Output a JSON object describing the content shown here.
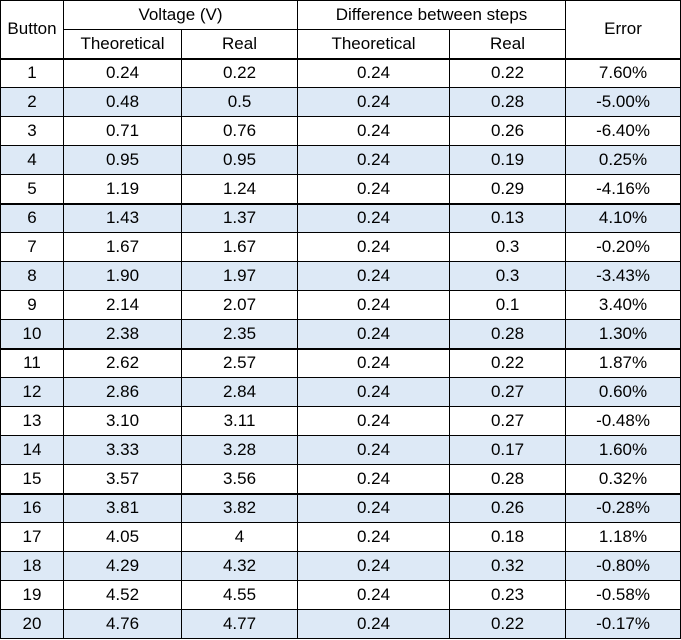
{
  "headers": {
    "button": "Button",
    "voltage_group": "Voltage (V)",
    "difference_group": "Difference between steps",
    "error": "Error",
    "voltage_theoretical": "Theoretical",
    "voltage_real": "Real",
    "difference_theoretical": "Theoretical",
    "difference_real": "Real"
  },
  "rows": [
    {
      "button": "1",
      "v_theo": "0.24",
      "v_real": "0.22",
      "d_theo": "0.24",
      "d_real": "0.22",
      "error": "7.60%"
    },
    {
      "button": "2",
      "v_theo": "0.48",
      "v_real": "0.5",
      "d_theo": "0.24",
      "d_real": "0.28",
      "error": "-5.00%"
    },
    {
      "button": "3",
      "v_theo": "0.71",
      "v_real": "0.76",
      "d_theo": "0.24",
      "d_real": "0.26",
      "error": "-6.40%"
    },
    {
      "button": "4",
      "v_theo": "0.95",
      "v_real": "0.95",
      "d_theo": "0.24",
      "d_real": "0.19",
      "error": "0.25%"
    },
    {
      "button": "5",
      "v_theo": "1.19",
      "v_real": "1.24",
      "d_theo": "0.24",
      "d_real": "0.29",
      "error": "-4.16%"
    },
    {
      "button": "6",
      "v_theo": "1.43",
      "v_real": "1.37",
      "d_theo": "0.24",
      "d_real": "0.13",
      "error": "4.10%"
    },
    {
      "button": "7",
      "v_theo": "1.67",
      "v_real": "1.67",
      "d_theo": "0.24",
      "d_real": "0.3",
      "error": "-0.20%"
    },
    {
      "button": "8",
      "v_theo": "1.90",
      "v_real": "1.97",
      "d_theo": "0.24",
      "d_real": "0.3",
      "error": "-3.43%"
    },
    {
      "button": "9",
      "v_theo": "2.14",
      "v_real": "2.07",
      "d_theo": "0.24",
      "d_real": "0.1",
      "error": "3.40%"
    },
    {
      "button": "10",
      "v_theo": "2.38",
      "v_real": "2.35",
      "d_theo": "0.24",
      "d_real": "0.28",
      "error": "1.30%"
    },
    {
      "button": "11",
      "v_theo": "2.62",
      "v_real": "2.57",
      "d_theo": "0.24",
      "d_real": "0.22",
      "error": "1.87%"
    },
    {
      "button": "12",
      "v_theo": "2.86",
      "v_real": "2.84",
      "d_theo": "0.24",
      "d_real": "0.27",
      "error": "0.60%"
    },
    {
      "button": "13",
      "v_theo": "3.10",
      "v_real": "3.11",
      "d_theo": "0.24",
      "d_real": "0.27",
      "error": "-0.48%"
    },
    {
      "button": "14",
      "v_theo": "3.33",
      "v_real": "3.28",
      "d_theo": "0.24",
      "d_real": "0.17",
      "error": "1.60%"
    },
    {
      "button": "15",
      "v_theo": "3.57",
      "v_real": "3.56",
      "d_theo": "0.24",
      "d_real": "0.28",
      "error": "0.32%"
    },
    {
      "button": "16",
      "v_theo": "3.81",
      "v_real": "3.82",
      "d_theo": "0.24",
      "d_real": "0.26",
      "error": "-0.28%"
    },
    {
      "button": "17",
      "v_theo": "4.05",
      "v_real": "4",
      "d_theo": "0.24",
      "d_real": "0.18",
      "error": "1.18%"
    },
    {
      "button": "18",
      "v_theo": "4.29",
      "v_real": "4.32",
      "d_theo": "0.24",
      "d_real": "0.32",
      "error": "-0.80%"
    },
    {
      "button": "19",
      "v_theo": "4.52",
      "v_real": "4.55",
      "d_theo": "0.24",
      "d_real": "0.23",
      "error": "-0.58%"
    },
    {
      "button": "20",
      "v_theo": "4.76",
      "v_real": "4.77",
      "d_theo": "0.24",
      "d_real": "0.22",
      "error": "-0.17%"
    }
  ],
  "colors": {
    "shaded_row": "#dde9f6",
    "plain_row": "#ffffff",
    "border": "#000000"
  }
}
